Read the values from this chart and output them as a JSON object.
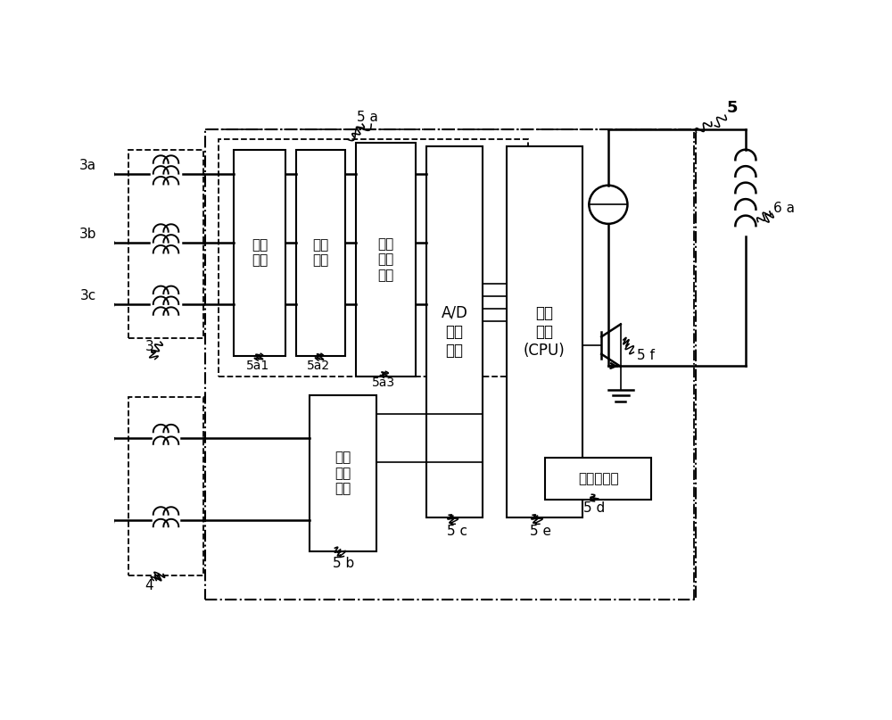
{
  "bg_color": "#ffffff",
  "line_color": "#000000",
  "fig_w": 10.0,
  "fig_h": 8.07,
  "dpi": 100,
  "labels": {
    "3a": "3a",
    "3b": "3b",
    "3c": "3c",
    "3": "3",
    "4": "4",
    "5": "5",
    "5a": "5 a",
    "5b": "5 b",
    "5c": "5 c",
    "5a1": "5a1",
    "5a2": "5a2",
    "5a3": "5a3",
    "5d": "5 d",
    "5e": "5 e",
    "5f": "5 f",
    "6a": "6 a",
    "box1": "整流\n电路",
    "box2": "负担\n电路",
    "box3": "波形变换\n电路",
    "box4": "A/D\n变换\n电路",
    "box5": "控制\n装置\n(CPU)",
    "box6": "电压变换\n电路",
    "box7": "特性设定部"
  }
}
